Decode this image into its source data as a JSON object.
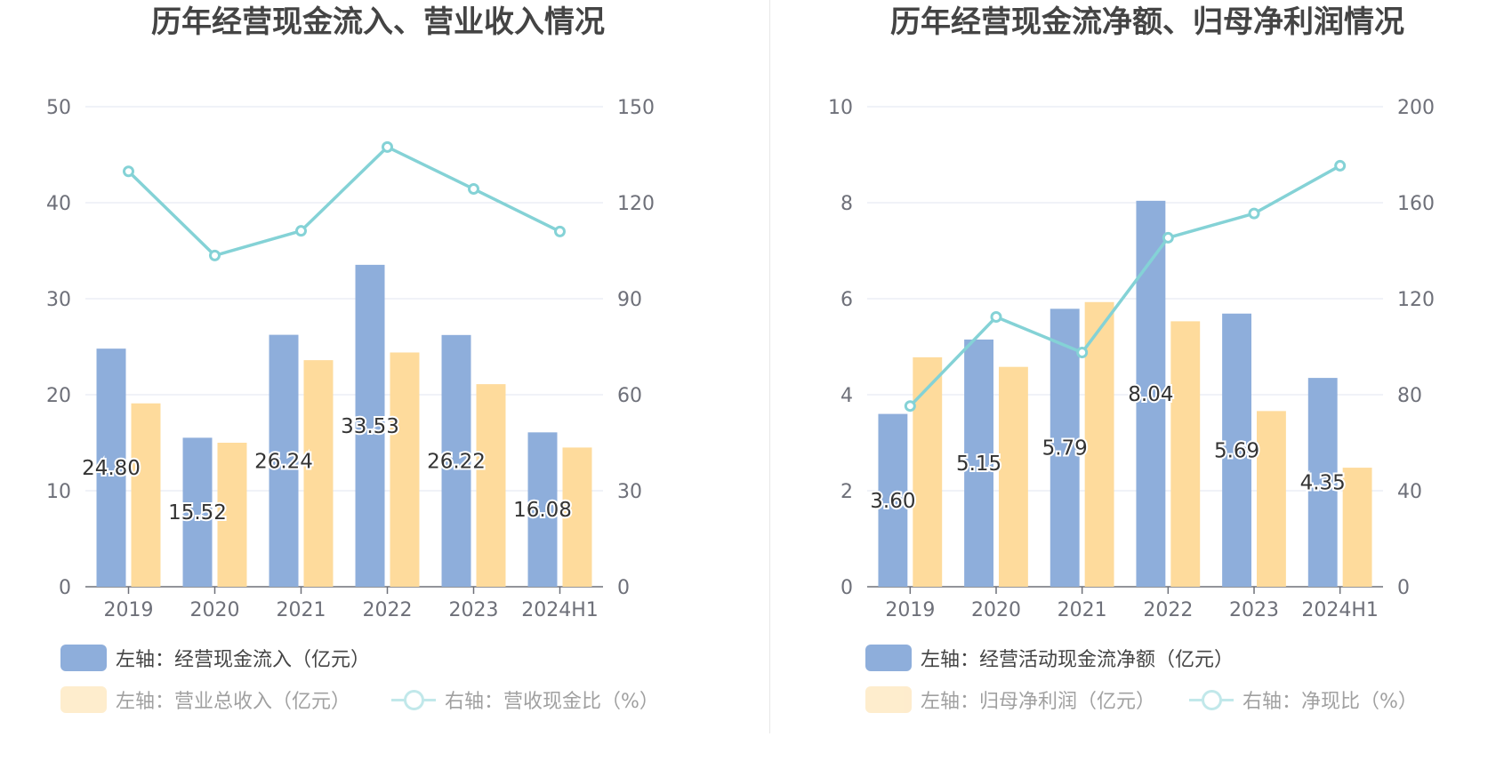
{
  "chart_data": [
    {
      "type": "bar",
      "title": "历年经营现金流入、营业收入情况",
      "categories": [
        "2019",
        "2020",
        "2021",
        "2022",
        "2023",
        "2024H1"
      ],
      "left_axis": {
        "ylim": [
          0,
          50
        ],
        "ticks": [
          "0",
          "10",
          "20",
          "30",
          "40",
          "50"
        ]
      },
      "right_axis": {
        "ylim": [
          0,
          150
        ],
        "ticks": [
          "0",
          "30",
          "60",
          "90",
          "120",
          "150"
        ]
      },
      "series": [
        {
          "name": "左轴：经营现金流入（亿元）",
          "type": "bar",
          "axis": "left",
          "color": "#8eaedb",
          "values": [
            24.8,
            15.52,
            26.24,
            33.53,
            26.22,
            16.08
          ],
          "labels": [
            "24.80",
            "15.52",
            "26.24",
            "33.53",
            "26.22",
            "16.08"
          ]
        },
        {
          "name": "左轴：营业总收入（亿元）",
          "type": "bar",
          "axis": "left",
          "color": "#fedb9c",
          "values": [
            19.1,
            15.0,
            23.6,
            24.4,
            21.1,
            14.5
          ]
        },
        {
          "name": "右轴：营收现金比（%）",
          "type": "line",
          "axis": "right",
          "color": "#84d2d6",
          "values": [
            129.8,
            103.5,
            111.2,
            137.4,
            124.3,
            111.0
          ]
        }
      ],
      "grid": true,
      "legend": "bottom"
    },
    {
      "type": "bar",
      "title": "历年经营现金流净额、归母净利润情况",
      "categories": [
        "2019",
        "2020",
        "2021",
        "2022",
        "2023",
        "2024H1"
      ],
      "left_axis": {
        "ylim": [
          0,
          10
        ],
        "ticks": [
          "0",
          "2",
          "4",
          "6",
          "8",
          "10"
        ]
      },
      "right_axis": {
        "ylim": [
          0,
          200
        ],
        "ticks": [
          "0",
          "40",
          "80",
          "120",
          "160",
          "200"
        ]
      },
      "series": [
        {
          "name": "左轴：经营活动现金流净额（亿元）",
          "type": "bar",
          "axis": "left",
          "color": "#8eaedb",
          "values": [
            3.6,
            5.15,
            5.79,
            8.04,
            5.69,
            4.35
          ],
          "labels": [
            "3.60",
            "5.15",
            "5.79",
            "8.04",
            "5.69",
            "4.35"
          ]
        },
        {
          "name": "左轴：归母净利润（亿元）",
          "type": "bar",
          "axis": "left",
          "color": "#fedb9c",
          "values": [
            4.78,
            4.58,
            5.93,
            5.53,
            3.66,
            2.48
          ]
        },
        {
          "name": "右轴：净现比（%）",
          "type": "line",
          "axis": "right",
          "color": "#84d2d6",
          "values": [
            75.3,
            112.4,
            97.6,
            145.4,
            155.5,
            175.4
          ]
        }
      ],
      "grid": true,
      "legend": "bottom"
    }
  ]
}
